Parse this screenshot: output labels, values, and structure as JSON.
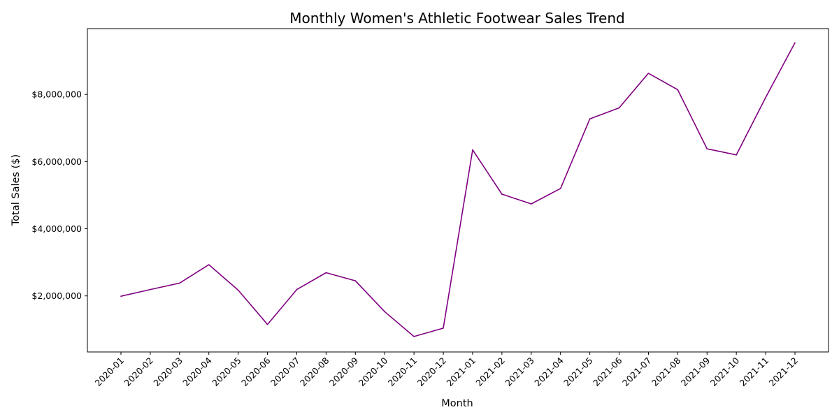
{
  "chart_data": {
    "type": "line",
    "title": "Monthly Women's Athletic Footwear Sales Trend",
    "xlabel": "Month",
    "ylabel": "Total Sales ($)",
    "x": [
      "2020-01",
      "2020-02",
      "2020-03",
      "2020-04",
      "2020-05",
      "2020-06",
      "2020-07",
      "2020-08",
      "2020-09",
      "2020-10",
      "2020-11",
      "2020-12",
      "2021-01",
      "2021-02",
      "2021-03",
      "2021-04",
      "2021-05",
      "2021-06",
      "2021-07",
      "2021-08",
      "2021-09",
      "2021-10",
      "2021-11",
      "2021-12"
    ],
    "series": [
      {
        "values": [
          1990000,
          2190000,
          2380000,
          2930000,
          2170000,
          1150000,
          2190000,
          2690000,
          2450000,
          1530000,
          790000,
          1040000,
          6350000,
          5030000,
          4740000,
          5200000,
          7270000,
          7600000,
          8630000,
          8140000,
          6380000,
          6200000,
          7910000,
          9540000
        ],
        "color": "#800080"
      }
    ],
    "ylim": [
      330000,
      9960000
    ],
    "yticks": [
      2000000,
      4000000,
      6000000,
      8000000
    ],
    "ytick_labels": [
      "$2,000,000",
      "$4,000,000",
      "$6,000,000",
      "$8,000,000"
    ],
    "grid": false,
    "legend": "none"
  }
}
